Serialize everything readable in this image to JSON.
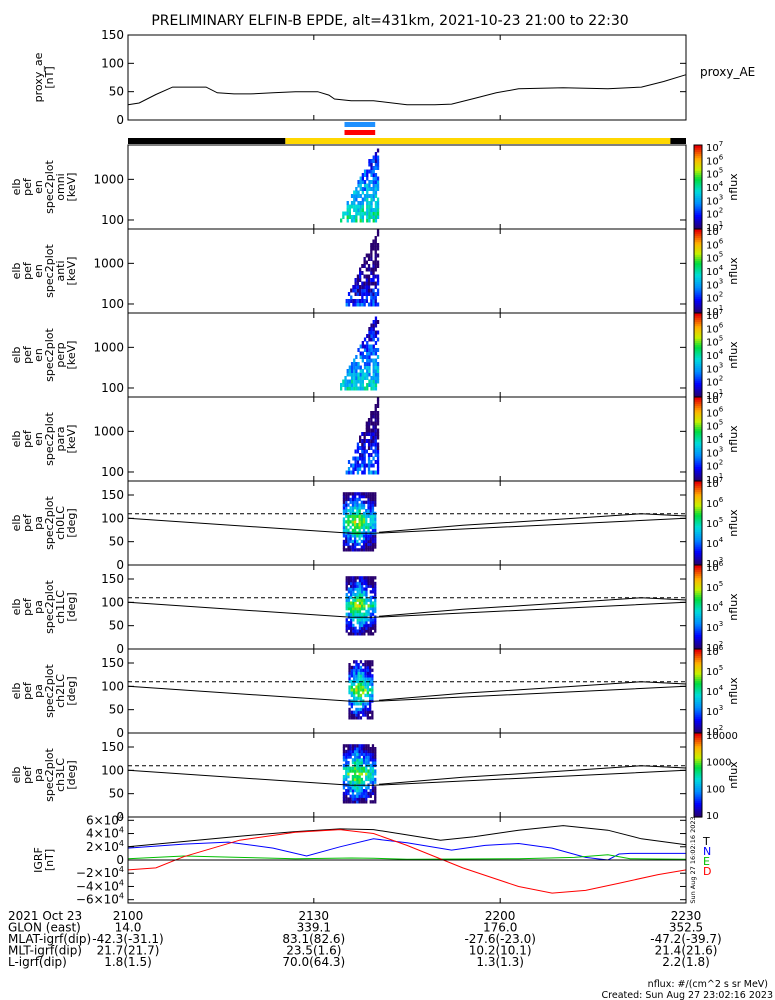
{
  "title": "PRELIMINARY ELFIN-B EPDE, alt=431km, 2021-10-23 21:00 to 22:30",
  "colors": {
    "axis": "#000000",
    "bar_dark": "#000000",
    "bar_yellow": "#ffd700",
    "science_blue": "#1e90ff",
    "science_red": "#ff0000",
    "grf_T": "#000000",
    "grf_N": "#0000ff",
    "grf_E": "#00c000",
    "grf_D": "#ff0000"
  },
  "status_bar": {
    "segments": [
      {
        "from": 0.0,
        "to": 0.282,
        "color": "#000000"
      },
      {
        "from": 0.282,
        "to": 0.972,
        "color": "#ffd700"
      },
      {
        "from": 0.972,
        "to": 1.0,
        "color": "#000000"
      }
    ],
    "science_zone": {
      "from": 0.388,
      "to": 0.443
    }
  },
  "chart_data": [
    {
      "id": "proxy_ae",
      "type": "line",
      "ylabel": [
        "proxy_ae",
        "[nT]"
      ],
      "legend": "proxy_AE",
      "ylim": [
        0,
        150
      ],
      "yticks": [
        0,
        50,
        100,
        150
      ],
      "x": [
        0.0,
        0.02,
        0.05,
        0.08,
        0.12,
        0.14,
        0.16,
        0.19,
        0.22,
        0.26,
        0.3,
        0.34,
        0.36,
        0.37,
        0.4,
        0.44,
        0.5,
        0.55,
        0.58,
        0.62,
        0.66,
        0.7,
        0.78,
        0.86,
        0.92,
        0.96,
        1.0
      ],
      "y": [
        27,
        30,
        45,
        58,
        58,
        58,
        48,
        46,
        46,
        48,
        50,
        50,
        44,
        37,
        34,
        34,
        27,
        27,
        28,
        38,
        48,
        55,
        57,
        55,
        58,
        68,
        80
      ]
    },
    {
      "id": "en_omni",
      "type": "heatmap",
      "ylabel": [
        "elb",
        "pef",
        "en",
        "spec2plot",
        "omni",
        "[keV]"
      ],
      "yscale": "log",
      "ylim": [
        60,
        7000
      ],
      "yticks": [
        100,
        1000
      ],
      "ytick_labels": [
        "100",
        "1000"
      ],
      "colorbar": {
        "label": "nflux",
        "scale": "log",
        "min": 10,
        "max": 10000000,
        "ticks": [
          "10",
          "10",
          "10",
          "10",
          "10",
          "10",
          "10"
        ],
        "exps": [
          "1",
          "2",
          "3",
          "4",
          "5",
          "6",
          "7"
        ]
      },
      "activity": {
        "from": 0.38,
        "to": 0.45,
        "peak": 0.55
      }
    },
    {
      "id": "en_anti",
      "type": "heatmap",
      "ylabel": [
        "elb",
        "pef",
        "en",
        "spec2plot",
        "anti",
        "[keV]"
      ],
      "yscale": "log",
      "ylim": [
        60,
        7000
      ],
      "yticks": [
        100,
        1000
      ],
      "ytick_labels": [
        "100",
        "1000"
      ],
      "colorbar": {
        "label": "nflux",
        "scale": "log",
        "min": 10,
        "max": 10000000,
        "ticks": [
          "10",
          "10",
          "10",
          "10",
          "10",
          "10",
          "10"
        ],
        "exps": [
          "1",
          "2",
          "3",
          "4",
          "5",
          "6",
          "7"
        ]
      },
      "activity": {
        "from": 0.39,
        "to": 0.45,
        "peak": 0.25
      }
    },
    {
      "id": "en_perp",
      "type": "heatmap",
      "ylabel": [
        "elb",
        "pef",
        "en",
        "spec2plot",
        "perp",
        "[keV]"
      ],
      "yscale": "log",
      "ylim": [
        60,
        7000
      ],
      "yticks": [
        100,
        1000
      ],
      "ytick_labels": [
        "100",
        "1000"
      ],
      "colorbar": {
        "label": "nflux",
        "scale": "log",
        "min": 10,
        "max": 10000000,
        "ticks": [
          "10",
          "10",
          "10",
          "10",
          "10",
          "10",
          "10"
        ],
        "exps": [
          "1",
          "2",
          "3",
          "4",
          "5",
          "6",
          "7"
        ]
      },
      "activity": {
        "from": 0.38,
        "to": 0.45,
        "peak": 0.5
      }
    },
    {
      "id": "en_para",
      "type": "heatmap",
      "ylabel": [
        "elb",
        "pef",
        "en",
        "spec2plot",
        "para",
        "[keV]"
      ],
      "yscale": "log",
      "ylim": [
        60,
        7000
      ],
      "yticks": [
        100,
        1000
      ],
      "ytick_labels": [
        "100",
        "1000"
      ],
      "colorbar": {
        "label": "nflux",
        "scale": "log",
        "min": 10,
        "max": 10000000,
        "ticks": [
          "10",
          "10",
          "10",
          "10",
          "10",
          "10",
          "10"
        ],
        "exps": [
          "1",
          "2",
          "3",
          "4",
          "5",
          "6",
          "7"
        ]
      },
      "activity": {
        "from": 0.39,
        "to": 0.45,
        "peak": 0.3
      }
    },
    {
      "id": "pa_ch0LC",
      "type": "heatmap",
      "ylabel": [
        "elb",
        "pef",
        "pa",
        "spec2plot",
        "ch0LC",
        "[deg]"
      ],
      "ylim": [
        0,
        180
      ],
      "yticks": [
        0,
        50,
        100,
        150
      ],
      "ytick_labels": [
        "0",
        "50",
        "100",
        "150"
      ],
      "colorbar": {
        "label": "nflux",
        "scale": "log",
        "min": 1000,
        "max": 10000000,
        "ticks": [
          "10",
          "10",
          "10",
          "10",
          "10"
        ],
        "exps": [
          "3",
          "4",
          "5",
          "6",
          "7"
        ]
      },
      "activity": {
        "from": 0.385,
        "to": 0.445
      },
      "solid_curve": {
        "x": [
          0.0,
          0.4,
          0.44,
          1.0
        ],
        "y": [
          100,
          68,
          68,
          100
        ]
      },
      "dashed_curve": {
        "x": [
          0.0,
          1.0
        ],
        "y": [
          110,
          110
        ]
      },
      "top_curve": {
        "x": [
          0.45,
          0.6,
          0.8,
          0.92,
          1.0
        ],
        "y": [
          70,
          85,
          100,
          110,
          105
        ]
      }
    },
    {
      "id": "pa_ch1LC",
      "type": "heatmap",
      "ylabel": [
        "elb",
        "pef",
        "pa",
        "spec2plot",
        "ch1LC",
        "[deg]"
      ],
      "ylim": [
        0,
        180
      ],
      "yticks": [
        0,
        50,
        100,
        150
      ],
      "ytick_labels": [
        "0",
        "50",
        "100",
        "150"
      ],
      "colorbar": {
        "label": "nflux",
        "scale": "log",
        "min": 100,
        "max": 1000000,
        "ticks": [
          "10",
          "10",
          "10",
          "10",
          "10"
        ],
        "exps": [
          "2",
          "3",
          "4",
          "5",
          "6"
        ]
      },
      "activity": {
        "from": 0.39,
        "to": 0.445
      },
      "solid_curve": {
        "x": [
          0.0,
          0.4,
          0.44,
          1.0
        ],
        "y": [
          100,
          68,
          68,
          100
        ]
      },
      "dashed_curve": {
        "x": [
          0.0,
          1.0
        ],
        "y": [
          110,
          110
        ]
      },
      "top_curve": {
        "x": [
          0.45,
          0.6,
          0.8,
          0.92,
          1.0
        ],
        "y": [
          70,
          85,
          100,
          110,
          105
        ]
      }
    },
    {
      "id": "pa_ch2LC",
      "type": "heatmap",
      "ylabel": [
        "elb",
        "pef",
        "pa",
        "spec2plot",
        "ch2LC",
        "[deg]"
      ],
      "ylim": [
        0,
        180
      ],
      "yticks": [
        0,
        50,
        100,
        150
      ],
      "ytick_labels": [
        "0",
        "50",
        "100",
        "150"
      ],
      "colorbar": {
        "label": "nflux",
        "scale": "log",
        "min": 100,
        "max": 1000000,
        "ticks": [
          "10",
          "10",
          "10",
          "10",
          "10"
        ],
        "exps": [
          "2",
          "3",
          "4",
          "5",
          "6"
        ]
      },
      "activity": {
        "from": 0.395,
        "to": 0.44
      },
      "solid_curve": {
        "x": [
          0.0,
          0.4,
          0.44,
          1.0
        ],
        "y": [
          100,
          68,
          68,
          100
        ]
      },
      "dashed_curve": {
        "x": [
          0.0,
          1.0
        ],
        "y": [
          110,
          110
        ]
      },
      "top_curve": {
        "x": [
          0.45,
          0.6,
          0.8,
          0.92,
          1.0
        ],
        "y": [
          70,
          85,
          100,
          110,
          105
        ]
      }
    },
    {
      "id": "pa_ch3LC",
      "type": "heatmap",
      "ylabel": [
        "elb",
        "pef",
        "pa",
        "spec2plot",
        "ch3LC",
        "[deg]"
      ],
      "ylim": [
        0,
        180
      ],
      "yticks": [
        0,
        50,
        100,
        150
      ],
      "ytick_labels": [
        "0",
        "50",
        "100",
        "150"
      ],
      "colorbar": {
        "label": "nflux",
        "scale": "log",
        "min": 10,
        "max": 10000,
        "ticks": [
          "10",
          "100",
          "1000",
          "10000"
        ],
        "exps": [
          "",
          "",
          "",
          ""
        ]
      },
      "activity": {
        "from": 0.385,
        "to": 0.445
      },
      "solid_curve": {
        "x": [
          0.0,
          0.4,
          0.44,
          1.0
        ],
        "y": [
          100,
          68,
          68,
          100
        ]
      },
      "dashed_curve": {
        "x": [
          0.0,
          1.0
        ],
        "y": [
          110,
          110
        ]
      },
      "top_curve": {
        "x": [
          0.45,
          0.6,
          0.8,
          0.92,
          1.0
        ],
        "y": [
          70,
          85,
          100,
          110,
          105
        ]
      }
    },
    {
      "id": "grf",
      "type": "line",
      "ylabel": [
        "IGRF",
        "[nT]"
      ],
      "ylim": [
        -65000,
        65000
      ],
      "yticks": [
        -60000,
        -40000,
        -20000,
        0,
        20000,
        40000,
        60000
      ],
      "ytick_labels": [
        {
          "m": "−6",
          "e": "4"
        },
        {
          "m": "−4",
          "e": "4"
        },
        {
          "m": "−2",
          "e": "4"
        },
        {
          "m": "0",
          "e": ""
        },
        {
          "m": "2",
          "e": "4"
        },
        {
          "m": "4",
          "e": "4"
        },
        {
          "m": "6",
          "e": "4"
        }
      ],
      "legend": [
        "T",
        "N",
        "E",
        "D"
      ],
      "side_note": "Sun Aug 27 16:02:16 2023",
      "series": [
        {
          "name": "T",
          "x": [
            0.0,
            0.1,
            0.2,
            0.3,
            0.38,
            0.44,
            0.5,
            0.56,
            0.62,
            0.7,
            0.78,
            0.86,
            0.92,
            1.0
          ],
          "y": [
            20000,
            28000,
            36000,
            43000,
            47000,
            46000,
            38000,
            30000,
            35000,
            45000,
            52000,
            45000,
            32000,
            23000
          ]
        },
        {
          "name": "N",
          "x": [
            0.0,
            0.1,
            0.18,
            0.26,
            0.32,
            0.38,
            0.44,
            0.5,
            0.58,
            0.64,
            0.7,
            0.76,
            0.82,
            0.86,
            0.88,
            0.9,
            0.95,
            1.0
          ],
          "y": [
            18000,
            24000,
            27000,
            18000,
            6000,
            20000,
            32000,
            26000,
            15000,
            22000,
            25000,
            18000,
            4000,
            0,
            9000,
            10000,
            10000,
            10000
          ]
        },
        {
          "name": "E",
          "x": [
            0.0,
            0.1,
            0.2,
            0.3,
            0.4,
            0.44,
            0.5,
            0.6,
            0.7,
            0.8,
            0.86,
            0.9,
            0.95,
            1.0
          ],
          "y": [
            2000,
            6000,
            4000,
            2000,
            3000,
            2500,
            1000,
            1500,
            2000,
            4000,
            8000,
            2000,
            1500,
            1000
          ]
        },
        {
          "name": "D",
          "x": [
            0.0,
            0.05,
            0.1,
            0.2,
            0.3,
            0.38,
            0.44,
            0.5,
            0.6,
            0.7,
            0.76,
            0.82,
            0.88,
            0.95,
            1.0
          ],
          "y": [
            -15000,
            -12000,
            5000,
            30000,
            42000,
            46000,
            40000,
            22000,
            -12000,
            -40000,
            -50000,
            -46000,
            -35000,
            -22000,
            -15000
          ]
        }
      ]
    }
  ],
  "x_axis": {
    "ticks": [
      {
        "x": 0.0,
        "label": "2100"
      },
      {
        "x": 0.333,
        "label": "2130"
      },
      {
        "x": 0.667,
        "label": "2200"
      },
      {
        "x": 1.0,
        "label": "2230"
      }
    ]
  },
  "ephemeris": [
    {
      "label": "2021 Oct 23",
      "values": [
        "2100",
        "2130",
        "2200",
        "2230"
      ]
    },
    {
      "label": "GLON (east)",
      "values": [
        "14.0",
        "339.1",
        "176.0",
        "352.5"
      ]
    },
    {
      "label": "MLAT-igrf(dip)",
      "values": [
        "-42.3(-31.1)",
        "83.1(82.6)",
        "-27.6(-23.0)",
        "-47.2(-39.7)"
      ]
    },
    {
      "label": "MLT-igrf(dip)",
      "values": [
        "21.7(21.7)",
        "23.5(1.6)",
        "10.2(10.1)",
        "21.4(21.6)"
      ]
    },
    {
      "label": "L-igrf(dip)",
      "values": [
        "1.8(1.5)",
        "70.0(64.3)",
        "1.3(1.3)",
        "2.2(1.8)"
      ]
    }
  ],
  "footer": {
    "units": "nflux: #/(cm^2 s sr MeV)",
    "created": "Created: Sun Aug 27 23:02:16 2023"
  }
}
